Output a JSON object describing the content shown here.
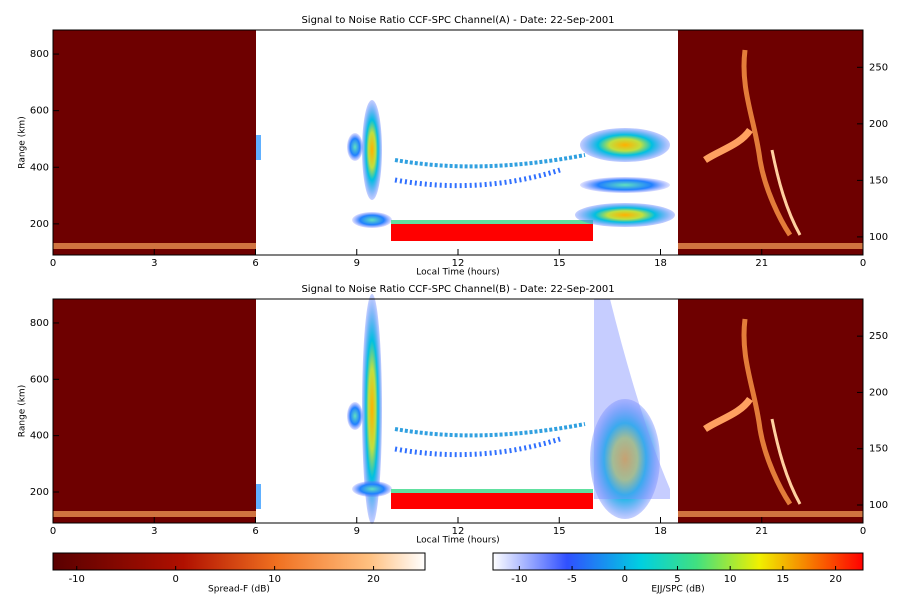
{
  "chart_data": [
    {
      "type": "heatmap",
      "title": "Signal to Noise Ratio CCF-SPC Channel(A) - Date: 22-Sep-2001",
      "xlabel": "Local Time (hours)",
      "ylabel": "Range (km)",
      "xlim": [
        0,
        24
      ],
      "xticks": [
        0,
        3,
        6,
        9,
        12,
        15,
        18,
        21,
        {
          "value": 24,
          "label": "0"
        }
      ],
      "ylim": [
        90,
        885
      ],
      "yticks": [
        200,
        400,
        600,
        800
      ],
      "y2lim": [
        84,
        283
      ],
      "y2ticks": [
        100,
        150,
        200,
        250
      ]
    },
    {
      "type": "heatmap",
      "title": "Signal to Noise Ratio CCF-SPC Channel(B) - Date: 22-Sep-2001",
      "xlabel": "Local Time (hours)",
      "ylabel": "Range (km)",
      "xlim": [
        0,
        24
      ],
      "xticks": [
        0,
        3,
        6,
        9,
        12,
        15,
        18,
        21,
        {
          "value": 24,
          "label": "0"
        }
      ],
      "ylim": [
        90,
        885
      ],
      "yticks": [
        200,
        400,
        600,
        800
      ],
      "y2lim": [
        84,
        283
      ],
      "y2ticks": [
        100,
        150,
        200,
        250
      ]
    }
  ],
  "colorbars": [
    {
      "label": "Spread-F (dB)",
      "lim": [
        -12.4,
        25.2
      ],
      "ticks": [
        -10,
        0,
        10,
        20
      ]
    },
    {
      "label": "EJJ/SPC (dB)",
      "lim": [
        -12.5,
        22.6
      ],
      "ticks": [
        -10,
        -5,
        0,
        5,
        10,
        15,
        20
      ]
    }
  ]
}
